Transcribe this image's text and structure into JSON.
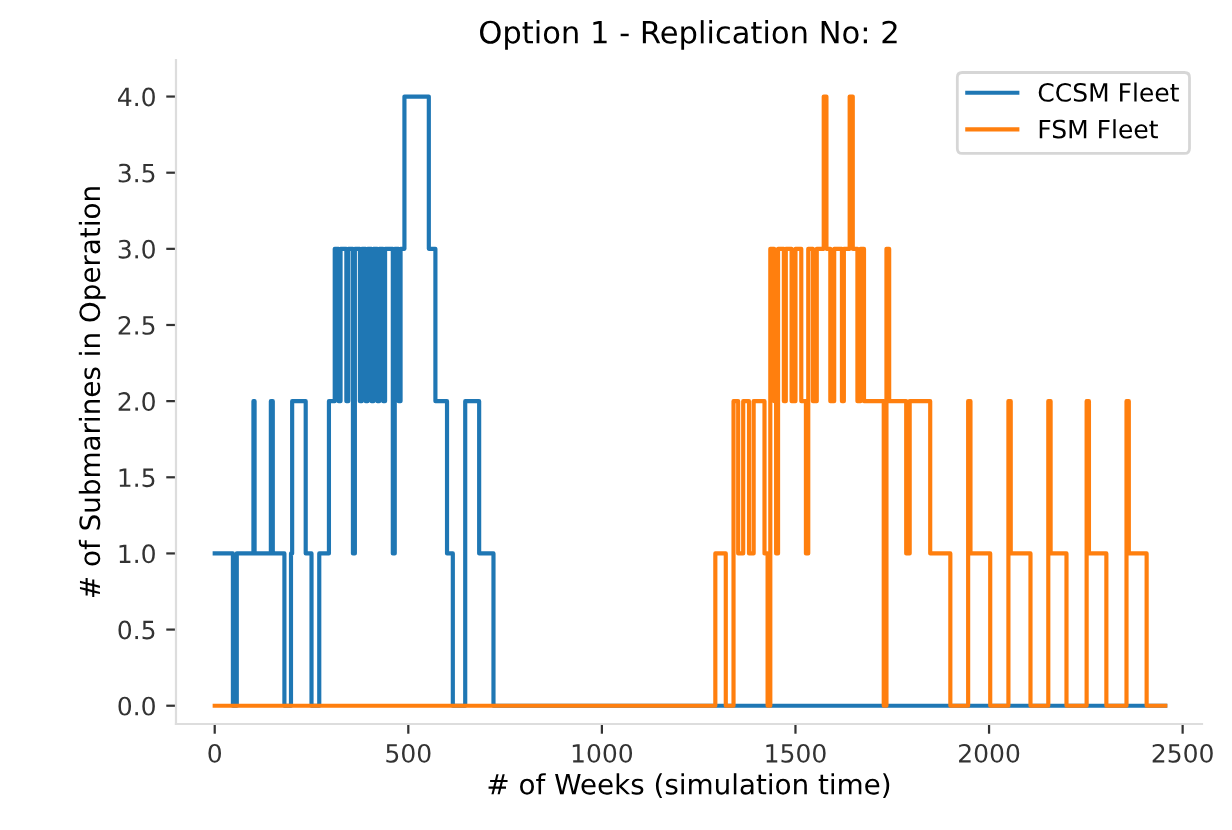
{
  "chart_data": {
    "type": "step",
    "title": "Option 1 - Replication No: 2",
    "xlabel": "# of Weeks (simulation time)",
    "ylabel": "# of Submarines in Operation",
    "series": [
      {
        "name": "CCSM Fleet",
        "color": "#1f77b4",
        "x": [
          0,
          47,
          57,
          100,
          103,
          145,
          150,
          180,
          197,
          200,
          235,
          250,
          270,
          295,
          310,
          320,
          325,
          340,
          345,
          357,
          362,
          375,
          380,
          390,
          395,
          405,
          410,
          420,
          425,
          435,
          440,
          460,
          465,
          475,
          480,
          490,
          553,
          570,
          600,
          615,
          647,
          683,
          720,
          2455
        ],
        "values": [
          1,
          0,
          1,
          2,
          1,
          2,
          1,
          0,
          1,
          2,
          1,
          0,
          1,
          2,
          3,
          2,
          3,
          2,
          3,
          1,
          3,
          2,
          3,
          2,
          3,
          2,
          3,
          2,
          3,
          2,
          3,
          1,
          3,
          2,
          3,
          4,
          3,
          2,
          1,
          0,
          2,
          1,
          0,
          0
        ]
      },
      {
        "name": "FSM Fleet",
        "color": "#ff7f0e",
        "x": [
          0,
          1293,
          1320,
          1340,
          1352,
          1365,
          1380,
          1392,
          1420,
          1428,
          1435,
          1445,
          1450,
          1455,
          1470,
          1475,
          1490,
          1500,
          1515,
          1527,
          1533,
          1545,
          1555,
          1573,
          1580,
          1590,
          1600,
          1620,
          1625,
          1640,
          1648,
          1660,
          1668,
          1677,
          1728,
          1735,
          1742,
          1786,
          1795,
          1848,
          1900,
          1946,
          1952,
          2003,
          2050,
          2056,
          2107,
          2153,
          2159,
          2200,
          2252,
          2258,
          2303,
          2355,
          2361,
          2407,
          2455
        ],
        "values": [
          0,
          1,
          0,
          2,
          1,
          2,
          1,
          2,
          1,
          0,
          3,
          2,
          1,
          3,
          2,
          3,
          2,
          3,
          2,
          1,
          3,
          2,
          3,
          4,
          3,
          2,
          3,
          2,
          3,
          4,
          3,
          2,
          3,
          2,
          0,
          3,
          2,
          1,
          2,
          1,
          0,
          2,
          1,
          0,
          2,
          1,
          0,
          2,
          1,
          0,
          2,
          1,
          0,
          2,
          1,
          0,
          0
        ]
      }
    ],
    "xlim": [
      -100,
      2550
    ],
    "xticks": [
      0,
      500,
      1000,
      1500,
      2000,
      2500
    ],
    "ylim": [
      -0.12,
      4.24
    ],
    "yticks": [
      {
        "value": 0,
        "label": "0.0"
      },
      {
        "value": 0.5,
        "label": "0.5"
      },
      {
        "value": 1,
        "label": "1.0"
      },
      {
        "value": 1.5,
        "label": "1.5"
      },
      {
        "value": 2,
        "label": "2.0"
      },
      {
        "value": 2.5,
        "label": "2.5"
      },
      {
        "value": 3,
        "label": "3.0"
      },
      {
        "value": 3.5,
        "label": "3.5"
      },
      {
        "value": 4,
        "label": "4.0"
      }
    ],
    "grid": false,
    "legend": "top right"
  }
}
